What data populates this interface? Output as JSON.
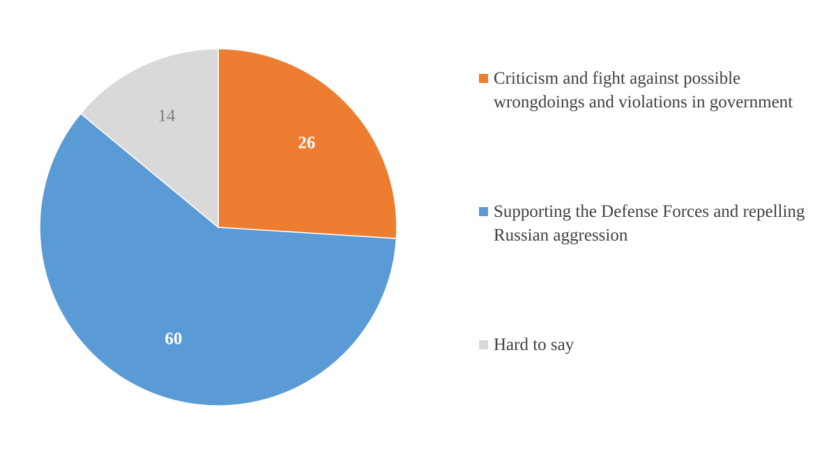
{
  "chart_data": {
    "type": "pie",
    "title": "",
    "legend_position": "right",
    "start_angle_deg": 0,
    "direction": "clockwise",
    "slices": [
      {
        "label": "Criticism and fight against possible wrongdoings and violations in government",
        "value": 26,
        "value_label": "26",
        "color": "#ED7D31",
        "label_color": "#FFFFFF",
        "label_bold": true
      },
      {
        "label": "Supporting the Defense Forces and repelling Russian aggression",
        "value": 60,
        "value_label": "60",
        "color": "#5B9BD5",
        "label_color": "#FFFFFF",
        "label_bold": true
      },
      {
        "label": "Hard to say",
        "value": 14,
        "value_label": "14",
        "color": "#D9D9D9",
        "label_color": "#7F7F7F",
        "label_bold": false
      }
    ]
  }
}
